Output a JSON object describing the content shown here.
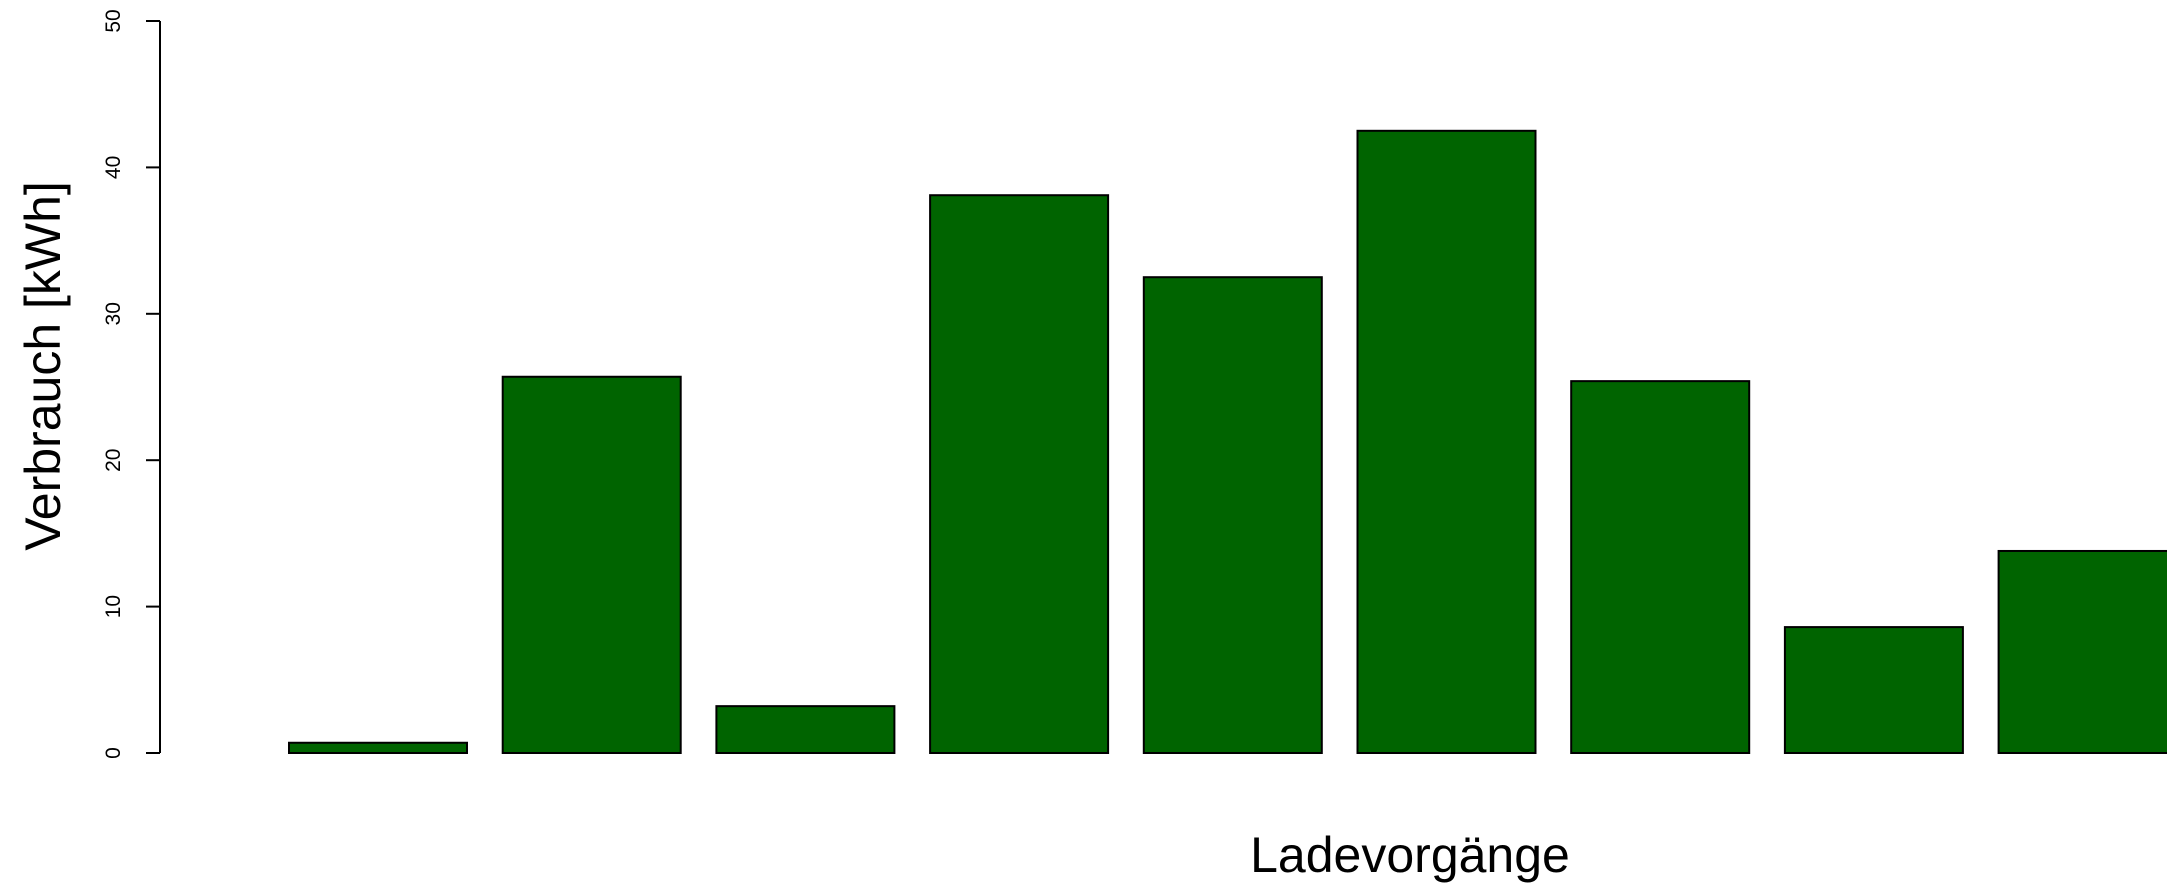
{
  "chart_data": {
    "type": "bar",
    "xlabel": "Ladevorgänge",
    "ylabel": "Verbrauch [kWh]",
    "categories": [
      null,
      null,
      null,
      null,
      null,
      null,
      null,
      null,
      null
    ],
    "values": [
      0.7,
      25.7,
      3.2,
      38.1,
      32.5,
      42.5,
      25.4,
      8.6,
      13.8
    ],
    "color": "#006400",
    "ylim": [
      0,
      50
    ],
    "yticks": [
      0,
      10,
      20,
      30,
      40,
      50
    ],
    "grid": false
  }
}
